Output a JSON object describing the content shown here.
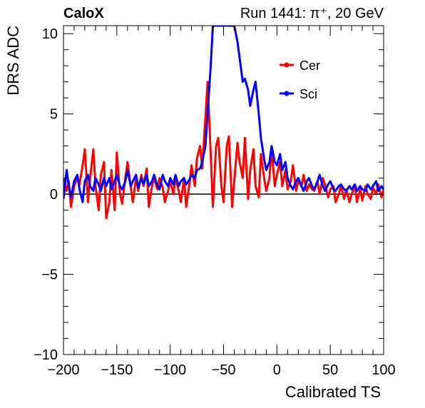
{
  "header": {
    "experiment": "CaloX",
    "run_info": "Run 1441:   π⁺, 20 GeV"
  },
  "chart_data": {
    "type": "line",
    "title": "",
    "xlabel": "Calibrated TS",
    "ylabel": "DRS ADC",
    "xlim": [
      -200,
      100
    ],
    "ylim": [
      -10,
      10.5
    ],
    "xticks": [
      -200,
      -150,
      -100,
      -50,
      0,
      50,
      100
    ],
    "yticks": [
      -10,
      -5,
      0,
      5,
      10
    ],
    "xtick_labels": [
      "−200",
      "−150",
      "−100",
      "−50",
      "0",
      "50",
      "100"
    ],
    "ytick_labels": [
      "−10",
      "−5",
      "0",
      "5",
      "10"
    ],
    "grid": false,
    "legend_position": "top-right",
    "series": [
      {
        "name": "Cer",
        "color": "#ff0000",
        "x": [
          -200,
          -197,
          -195,
          -193,
          -190,
          -187,
          -185,
          -182,
          -180,
          -177,
          -175,
          -172,
          -170,
          -167,
          -165,
          -162,
          -160,
          -157,
          -155,
          -152,
          -150,
          -147,
          -145,
          -142,
          -140,
          -137,
          -135,
          -132,
          -130,
          -127,
          -125,
          -122,
          -120,
          -117,
          -115,
          -112,
          -110,
          -107,
          -105,
          -102,
          -100,
          -97,
          -95,
          -92,
          -90,
          -87,
          -85,
          -82,
          -80,
          -77,
          -75,
          -72,
          -70,
          -67,
          -65,
          -62,
          -60,
          -57,
          -55,
          -52,
          -50,
          -47,
          -45,
          -42,
          -40,
          -37,
          -35,
          -32,
          -30,
          -27,
          -25,
          -22,
          -20,
          -17,
          -15,
          -12,
          -10,
          -7,
          -5,
          -2,
          0,
          3,
          5,
          8,
          10,
          13,
          15,
          18,
          20,
          23,
          25,
          28,
          30,
          33,
          35,
          38,
          40,
          43,
          45,
          48,
          50,
          53,
          55,
          58,
          60,
          63,
          65,
          68,
          70,
          73,
          75,
          78,
          80,
          83,
          85,
          88,
          90,
          93,
          95,
          98,
          100
        ],
        "y": [
          1.0,
          0.2,
          0.8,
          -0.8,
          0.5,
          1.0,
          0.6,
          1.8,
          2.8,
          -0.5,
          1.0,
          2.8,
          0.5,
          -1.0,
          1.2,
          2.0,
          -1.5,
          -0.5,
          1.5,
          -1.0,
          2.6,
          0.0,
          -0.6,
          1.0,
          2.0,
          0.5,
          -0.5,
          1.0,
          0.2,
          1.2,
          0.5,
          1.6,
          -0.8,
          0.5,
          1.0,
          0.3,
          1.0,
          0.4,
          -0.5,
          0.2,
          0.8,
          0.0,
          1.0,
          0.2,
          -0.5,
          1.0,
          -0.8,
          0.6,
          1.8,
          0.5,
          2.2,
          3.0,
          1.6,
          4.8,
          7.0,
          2.5,
          -0.8,
          3.0,
          3.5,
          0.5,
          -0.5,
          3.0,
          3.6,
          -0.8,
          0.8,
          3.2,
          2.0,
          1.0,
          3.5,
          -0.3,
          1.5,
          2.8,
          0.5,
          -0.2,
          2.5,
          1.0,
          0.2,
          1.0,
          2.8,
          0.5,
          1.2,
          2.0,
          0.5,
          1.5,
          0.3,
          0.8,
          1.8,
          0.2,
          0.8,
          0.5,
          1.2,
          0.2,
          0.6,
          0.3,
          0.2,
          0.8,
          0.0,
          1.0,
          0.6,
          -0.2,
          0.3,
          0.5,
          -0.5,
          0.0,
          0.5,
          -0.3,
          0.3,
          -0.5,
          0.0,
          0.5,
          -0.5,
          0.3,
          -0.4,
          0.5,
          0.0,
          -0.3,
          0.4,
          0.0,
          0.6,
          -0.2,
          0.3
        ]
      },
      {
        "name": "Sci",
        "color": "#0000ff",
        "x": [
          -200,
          -197,
          -195,
          -193,
          -190,
          -187,
          -185,
          -182,
          -180,
          -177,
          -175,
          -172,
          -170,
          -167,
          -165,
          -162,
          -160,
          -157,
          -155,
          -152,
          -150,
          -147,
          -145,
          -142,
          -140,
          -137,
          -135,
          -132,
          -130,
          -127,
          -125,
          -122,
          -120,
          -117,
          -115,
          -112,
          -110,
          -107,
          -105,
          -102,
          -100,
          -97,
          -95,
          -92,
          -90,
          -87,
          -85,
          -82,
          -80,
          -77,
          -75,
          -72,
          -70,
          -67,
          -65,
          -62,
          -60,
          -57,
          -55,
          -52,
          -50,
          -47,
          -45,
          -42,
          -40,
          -37,
          -35,
          -32,
          -30,
          -27,
          -25,
          -22,
          -20,
          -17,
          -15,
          -12,
          -10,
          -7,
          -5,
          -2,
          0,
          3,
          5,
          8,
          10,
          13,
          15,
          18,
          20,
          23,
          25,
          28,
          30,
          33,
          35,
          38,
          40,
          43,
          45,
          48,
          50,
          53,
          55,
          58,
          60,
          63,
          65,
          68,
          70,
          73,
          75,
          78,
          80,
          83,
          85,
          88,
          90,
          93,
          95,
          98,
          100
        ],
        "y": [
          -0.3,
          1.5,
          0.5,
          -0.2,
          0.8,
          1.2,
          0.3,
          -0.5,
          0.8,
          1.2,
          0.5,
          0.2,
          1.0,
          0.6,
          0.2,
          1.0,
          0.5,
          1.0,
          0.3,
          0.8,
          1.2,
          0.5,
          0.3,
          0.8,
          1.5,
          0.5,
          0.8,
          1.2,
          0.4,
          1.0,
          0.6,
          1.2,
          0.5,
          0.8,
          1.2,
          0.5,
          0.3,
          1.2,
          0.8,
          0.5,
          1.0,
          0.6,
          1.2,
          0.5,
          0.8,
          1.0,
          0.6,
          0.9,
          1.2,
          1.0,
          1.5,
          1.6,
          2.0,
          3.0,
          5.0,
          8.0,
          10.5,
          10.5,
          10.5,
          10.5,
          10.5,
          10.5,
          10.5,
          10.5,
          10.5,
          9.5,
          8.5,
          7.0,
          7.2,
          6.5,
          5.5,
          6.5,
          7.0,
          5.0,
          3.5,
          2.2,
          1.5,
          2.0,
          3.0,
          2.0,
          1.8,
          2.5,
          1.5,
          2.0,
          1.0,
          0.5,
          0.3,
          0.8,
          1.0,
          0.5,
          0.2,
          0.8,
          1.0,
          0.5,
          0.3,
          0.8,
          1.2,
          0.5,
          0.2,
          0.6,
          0.8,
          0.3,
          0.2,
          0.5,
          0.6,
          0.3,
          0.2,
          0.5,
          0.3,
          0.6,
          0.2,
          0.5,
          0.3,
          0.2,
          0.6,
          0.3,
          0.5,
          0.8,
          0.2,
          0.5,
          0.3
        ]
      }
    ]
  }
}
